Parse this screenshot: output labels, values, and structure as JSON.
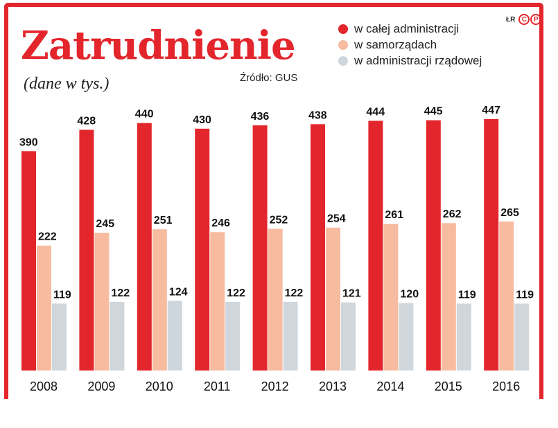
{
  "header": {
    "title": "Zatrudnienie",
    "subtitle": "(dane w tys.)",
    "source": "Źródło: GUS",
    "brand_letters": "ŁR",
    "brand_badge_1": "C",
    "brand_badge_2": "P"
  },
  "chart_data": {
    "type": "bar",
    "categories": [
      "2008",
      "2009",
      "2010",
      "2011",
      "2012",
      "2013",
      "2014",
      "2015",
      "2016"
    ],
    "series": [
      {
        "name": "w całej administracji",
        "color": "#e3262c",
        "values": [
          390,
          428,
          440,
          430,
          436,
          438,
          444,
          445,
          447
        ]
      },
      {
        "name": "w samorządach",
        "color": "#f7bba0",
        "values": [
          222,
          245,
          251,
          246,
          252,
          254,
          261,
          262,
          265
        ]
      },
      {
        "name": "w administracji rządowej",
        "color": "#cfd7dd",
        "values": [
          119,
          122,
          124,
          122,
          122,
          121,
          120,
          119,
          119
        ]
      }
    ],
    "ylim": [
      0,
      447
    ],
    "grid": false,
    "legend_position": "top-right"
  }
}
